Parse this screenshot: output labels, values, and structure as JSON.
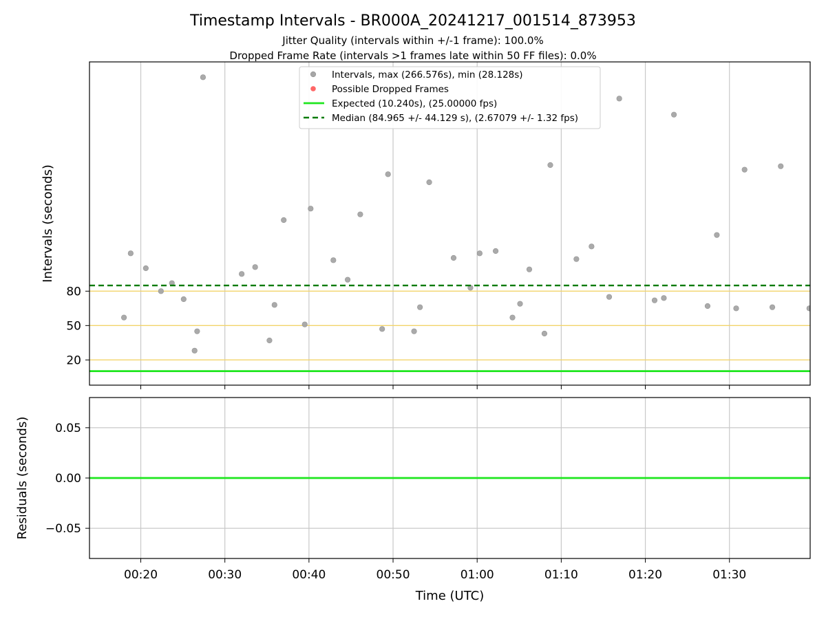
{
  "title": "Timestamp Intervals - BR000A_20241217_001514_873953",
  "subtitle_lines": [
    "Jitter Quality (intervals within +/-1 frame): 100.0%",
    "Dropped Frame Rate (intervals >1 frames late within 50 FF files): 0.0%"
  ],
  "colors": {
    "points": "#a6a6a6",
    "dropped": "#ff6666",
    "expected": "#1ee61e",
    "median": "#007a00",
    "band": "#f3d46a",
    "grid": "#c8c8c8"
  },
  "chart_data": [
    {
      "type": "scatter",
      "ylabel": "Intervals (seconds)",
      "xlabel": "",
      "x_ticks": [
        "00:20",
        "00:30",
        "00:40",
        "00:50",
        "01:00",
        "01:10",
        "01:20",
        "01:30"
      ],
      "x_tick_minutes": [
        20,
        30,
        40,
        50,
        60,
        70,
        80,
        90
      ],
      "xlim_minutes": [
        13.9,
        99.6
      ],
      "y_ticks": [
        20,
        50,
        80
      ],
      "ylim": [
        -2,
        280
      ],
      "grid": "vertical",
      "legend_position": "top-center",
      "legend": [
        "Intervals, max (266.576s), min (28.128s)",
        "Possible Dropped Frames",
        "Expected (10.240s), (25.00000 fps)",
        "Median (84.965 +/- 44.129 s), (2.67079 +/- 1.32 fps)"
      ],
      "reference_lines": [
        {
          "value": 10.24,
          "style": "solid",
          "color": "#1ee61e"
        },
        {
          "value": 84.965,
          "style": "dashed",
          "color": "#007a00"
        }
      ],
      "bands": [
        20,
        50,
        80
      ],
      "series": [
        {
          "points": [
            [
              18.0,
              57
            ],
            [
              18.8,
              113
            ],
            [
              20.6,
              100
            ],
            [
              22.4,
              80
            ],
            [
              23.7,
              87
            ],
            [
              25.1,
              73
            ],
            [
              26.4,
              28.1
            ],
            [
              26.7,
              45
            ],
            [
              27.4,
              266.6
            ],
            [
              32.0,
              95
            ],
            [
              33.6,
              101
            ],
            [
              35.3,
              37
            ],
            [
              35.9,
              68
            ],
            [
              37.0,
              142
            ],
            [
              39.5,
              51
            ],
            [
              40.2,
              152
            ],
            [
              42.9,
              107
            ],
            [
              44.6,
              90
            ],
            [
              46.1,
              147
            ],
            [
              48.7,
              47
            ],
            [
              49.4,
              182
            ],
            [
              52.5,
              45
            ],
            [
              53.2,
              66
            ],
            [
              54.3,
              175
            ],
            [
              57.2,
              109
            ],
            [
              59.2,
              83
            ],
            [
              60.3,
              113
            ],
            [
              62.2,
              115
            ],
            [
              64.2,
              57
            ],
            [
              65.1,
              69
            ],
            [
              66.2,
              99
            ],
            [
              68.0,
              43
            ],
            [
              68.7,
              190
            ],
            [
              71.8,
              108
            ],
            [
              73.6,
              119
            ],
            [
              75.7,
              75
            ],
            [
              76.9,
              248
            ],
            [
              81.1,
              72
            ],
            [
              82.2,
              74
            ],
            [
              83.4,
              234
            ],
            [
              87.4,
              67
            ],
            [
              88.5,
              129
            ],
            [
              90.8,
              65
            ],
            [
              91.8,
              186
            ],
            [
              95.1,
              66
            ],
            [
              96.1,
              189
            ],
            [
              99.5,
              65
            ]
          ]
        }
      ]
    },
    {
      "type": "line",
      "ylabel": "Residuals (seconds)",
      "xlabel": "Time (UTC)",
      "y_ticks": [
        "0.05",
        "0.00",
        "−0.05"
      ],
      "y_tick_values": [
        0.05,
        0.0,
        -0.05
      ],
      "ylim": [
        -0.08,
        0.08
      ],
      "grid": "both",
      "series": [
        {
          "values_minutes": [
            13.9,
            99.6
          ],
          "values": [
            0,
            0
          ]
        }
      ]
    }
  ]
}
